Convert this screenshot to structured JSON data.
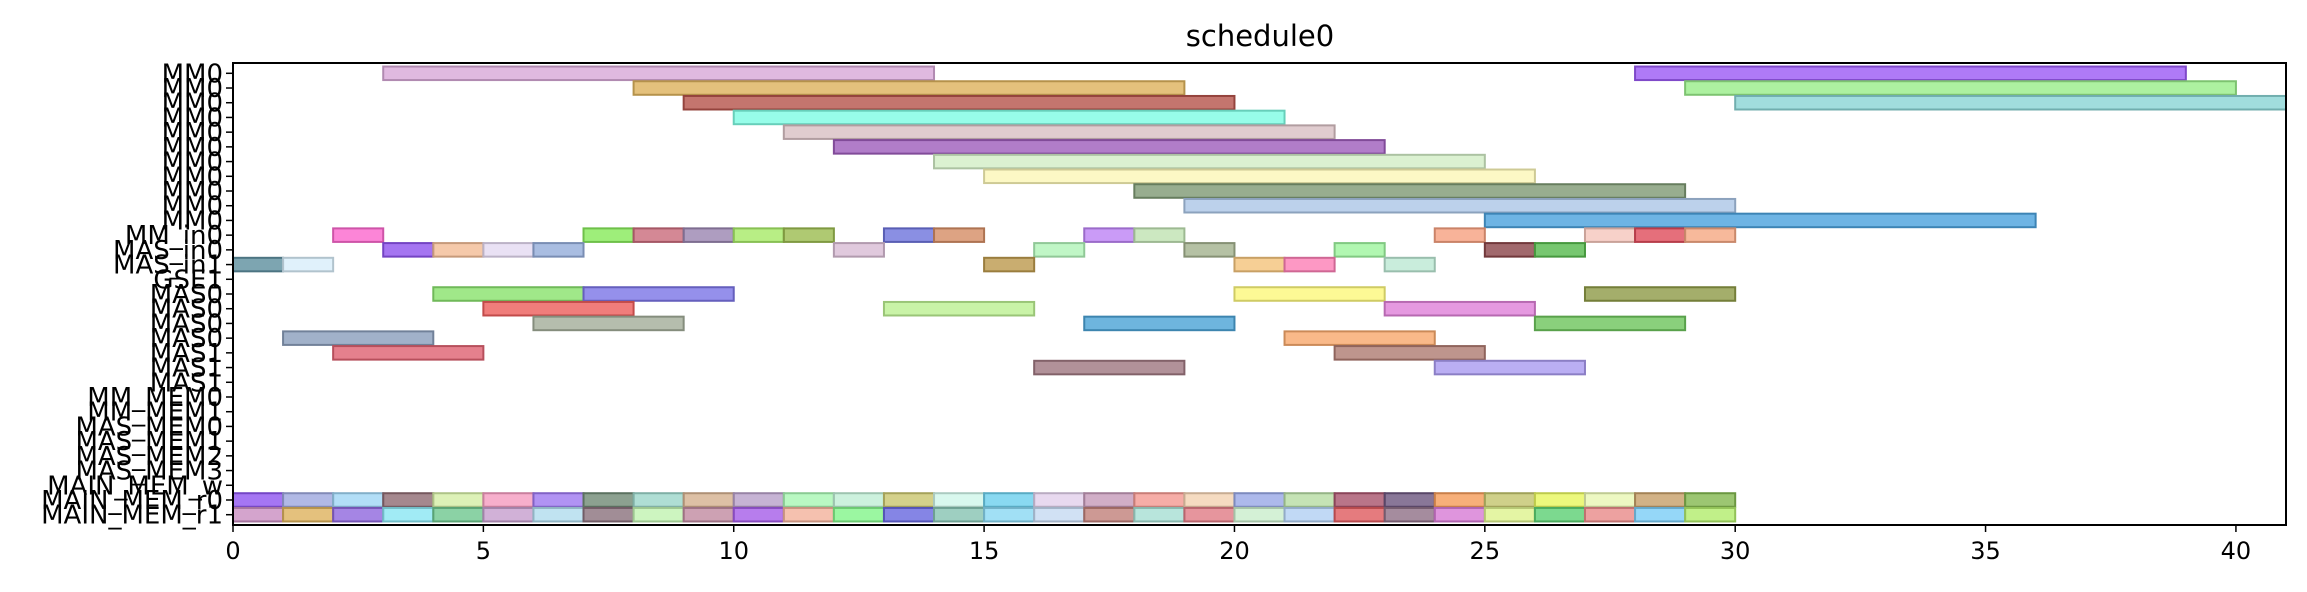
{
  "chart_data": {
    "type": "gantt",
    "title": "schedule0",
    "xlim": [
      0,
      41
    ],
    "xticks": [
      0,
      5,
      10,
      15,
      20,
      25,
      30,
      35,
      40
    ],
    "rows": [
      "MM0",
      "MM0",
      "MM0",
      "MM0",
      "MM0",
      "MM0",
      "MM0",
      "MM0",
      "MM0",
      "MM0",
      "MM0",
      "MM_in0",
      "MAS_in0",
      "MAS_in1",
      "GSE1",
      "MAS0",
      "MAS0",
      "MAS0",
      "MAS0",
      "MAS1",
      "MAS1",
      "MAS1",
      "MM_MEM0",
      "MM_MEM1",
      "MAS_MEM0",
      "MAS_MEM1",
      "MAS_MEM2",
      "MAS_MEM3",
      "MAIN_MEM_w",
      "MAIN_MEM_r0",
      "MAIN_MEM_r1"
    ],
    "bars": [
      {
        "row": 0,
        "start": 3,
        "end": 14,
        "color": "#d8a8d8"
      },
      {
        "row": 0,
        "start": 28,
        "end": 39,
        "color": "#9b59f5"
      },
      {
        "row": 1,
        "start": 8,
        "end": 19,
        "color": "#ddb25b"
      },
      {
        "row": 1,
        "start": 29,
        "end": 40,
        "color": "#98ee88"
      },
      {
        "row": 2,
        "start": 9,
        "end": 20,
        "color": "#b5524a"
      },
      {
        "row": 2,
        "start": 30,
        "end": 41,
        "color": "#8ad4d4"
      },
      {
        "row": 3,
        "start": 10,
        "end": 21,
        "color": "#7dfde3"
      },
      {
        "row": 4,
        "start": 11,
        "end": 22,
        "color": "#d8bfc3"
      },
      {
        "row": 5,
        "start": 12,
        "end": 23,
        "color": "#9d5cbb"
      },
      {
        "row": 6,
        "start": 14,
        "end": 25,
        "color": "#d2edc6"
      },
      {
        "row": 7,
        "start": 15,
        "end": 26,
        "color": "#fbf6b6"
      },
      {
        "row": 8,
        "start": 18,
        "end": 29,
        "color": "#7e9873"
      },
      {
        "row": 9,
        "start": 19,
        "end": 30,
        "color": "#abc6e6"
      },
      {
        "row": 10,
        "start": 25,
        "end": 36,
        "color": "#4aa1dd"
      },
      {
        "row": 11,
        "start": 2,
        "end": 3,
        "color": "#fb66cd"
      },
      {
        "row": 11,
        "start": 7,
        "end": 8,
        "color": "#86ea59"
      },
      {
        "row": 11,
        "start": 8,
        "end": 9,
        "color": "#c96a7b"
      },
      {
        "row": 11,
        "start": 9,
        "end": 10,
        "color": "#9a85b0"
      },
      {
        "row": 11,
        "start": 10,
        "end": 11,
        "color": "#a6ea67"
      },
      {
        "row": 11,
        "start": 11,
        "end": 12,
        "color": "#9bbb4f"
      },
      {
        "row": 11,
        "start": 13,
        "end": 14,
        "color": "#6d73dc"
      },
      {
        "row": 11,
        "start": 14,
        "end": 15,
        "color": "#d48c64"
      },
      {
        "row": 11,
        "start": 17,
        "end": 18,
        "color": "#bd82f5"
      },
      {
        "row": 11,
        "start": 18,
        "end": 19,
        "color": "#bfe2b2"
      },
      {
        "row": 11,
        "start": 24,
        "end": 25,
        "color": "#f6a07f"
      },
      {
        "row": 11,
        "start": 27,
        "end": 28,
        "color": "#f5c5bb"
      },
      {
        "row": 11,
        "start": 28,
        "end": 29,
        "color": "#df4b5a"
      },
      {
        "row": 11,
        "start": 29,
        "end": 30,
        "color": "#f5a782"
      },
      {
        "row": 12,
        "start": 3,
        "end": 4,
        "color": "#8e52ee"
      },
      {
        "row": 12,
        "start": 4,
        "end": 5,
        "color": "#f2bc95"
      },
      {
        "row": 12,
        "start": 5,
        "end": 6,
        "color": "#e4d9f1"
      },
      {
        "row": 12,
        "start": 6,
        "end": 7,
        "color": "#93acda"
      },
      {
        "row": 12,
        "start": 12,
        "end": 13,
        "color": "#d8bcd4"
      },
      {
        "row": 12,
        "start": 16,
        "end": 17,
        "color": "#b0f4b8"
      },
      {
        "row": 12,
        "start": 19,
        "end": 20,
        "color": "#a3b18d"
      },
      {
        "row": 12,
        "start": 22,
        "end": 23,
        "color": "#9df59e"
      },
      {
        "row": 12,
        "start": 25,
        "end": 26,
        "color": "#8a4448"
      },
      {
        "row": 12,
        "start": 26,
        "end": 27,
        "color": "#55b94c"
      },
      {
        "row": 13,
        "start": 0,
        "end": 1,
        "color": "#5d8e9e"
      },
      {
        "row": 13,
        "start": 1,
        "end": 2,
        "color": "#d8eefa"
      },
      {
        "row": 13,
        "start": 15,
        "end": 16,
        "color": "#bc994c"
      },
      {
        "row": 13,
        "start": 20,
        "end": 21,
        "color": "#f4c37b"
      },
      {
        "row": 13,
        "start": 21,
        "end": 22,
        "color": "#fc7eb5"
      },
      {
        "row": 13,
        "start": 23,
        "end": 24,
        "color": "#bbe8d3"
      },
      {
        "row": 15,
        "start": 4,
        "end": 7,
        "color": "#88e26c"
      },
      {
        "row": 15,
        "start": 7,
        "end": 10,
        "color": "#7b74e6"
      },
      {
        "row": 15,
        "start": 20,
        "end": 23,
        "color": "#fcf77a"
      },
      {
        "row": 15,
        "start": 27,
        "end": 30,
        "color": "#8d9a46"
      },
      {
        "row": 16,
        "start": 5,
        "end": 8,
        "color": "#ec5c5a"
      },
      {
        "row": 16,
        "start": 13,
        "end": 16,
        "color": "#bcf091"
      },
      {
        "row": 16,
        "start": 23,
        "end": 26,
        "color": "#df80d8"
      },
      {
        "row": 17,
        "start": 6,
        "end": 9,
        "color": "#a2ac98"
      },
      {
        "row": 17,
        "start": 17,
        "end": 20,
        "color": "#4aa2d6"
      },
      {
        "row": 17,
        "start": 26,
        "end": 29,
        "color": "#6dc45b"
      },
      {
        "row": 18,
        "start": 1,
        "end": 4,
        "color": "#8a9dbb"
      },
      {
        "row": 18,
        "start": 21,
        "end": 24,
        "color": "#f8a86b"
      },
      {
        "row": 19,
        "start": 2,
        "end": 5,
        "color": "#df6070"
      },
      {
        "row": 19,
        "start": 22,
        "end": 25,
        "color": "#ae7a70"
      },
      {
        "row": 20,
        "start": 16,
        "end": 19,
        "color": "#9e7680"
      },
      {
        "row": 20,
        "start": 24,
        "end": 27,
        "color": "#a99af0"
      },
      {
        "row": 29,
        "start": 0,
        "end": 1,
        "color": "#8e54f0"
      },
      {
        "row": 29,
        "start": 1,
        "end": 2,
        "color": "#9ea8df"
      },
      {
        "row": 29,
        "start": 2,
        "end": 3,
        "color": "#9fd6f5"
      },
      {
        "row": 29,
        "start": 3,
        "end": 4,
        "color": "#8f6a72"
      },
      {
        "row": 29,
        "start": 4,
        "end": 5,
        "color": "#d4eea5"
      },
      {
        "row": 29,
        "start": 5,
        "end": 6,
        "color": "#f59bbf"
      },
      {
        "row": 29,
        "start": 6,
        "end": 7,
        "color": "#9d78f0"
      },
      {
        "row": 29,
        "start": 7,
        "end": 8,
        "color": "#6f8a74"
      },
      {
        "row": 29,
        "start": 8,
        "end": 9,
        "color": "#9bd6c9"
      },
      {
        "row": 29,
        "start": 9,
        "end": 10,
        "color": "#d4b08f"
      },
      {
        "row": 29,
        "start": 10,
        "end": 11,
        "color": "#b8a0c9"
      },
      {
        "row": 29,
        "start": 11,
        "end": 12,
        "color": "#a8f6b3"
      },
      {
        "row": 29,
        "start": 12,
        "end": 13,
        "color": "#bfeed5"
      },
      {
        "row": 29,
        "start": 13,
        "end": 14,
        "color": "#c9c66e"
      },
      {
        "row": 29,
        "start": 14,
        "end": 15,
        "color": "#d0f6ea"
      },
      {
        "row": 29,
        "start": 15,
        "end": 16,
        "color": "#6cd0ee"
      },
      {
        "row": 29,
        "start": 16,
        "end": 17,
        "color": "#e2d0eb"
      },
      {
        "row": 29,
        "start": 17,
        "end": 18,
        "color": "#c59ab9"
      },
      {
        "row": 29,
        "start": 18,
        "end": 19,
        "color": "#f49891"
      },
      {
        "row": 29,
        "start": 19,
        "end": 20,
        "color": "#f3d2b2"
      },
      {
        "row": 29,
        "start": 20,
        "end": 21,
        "color": "#98a8e6"
      },
      {
        "row": 29,
        "start": 21,
        "end": 22,
        "color": "#b6dca3"
      },
      {
        "row": 29,
        "start": 22,
        "end": 23,
        "color": "#a8536c"
      },
      {
        "row": 29,
        "start": 23,
        "end": 24,
        "color": "#6b557e"
      },
      {
        "row": 29,
        "start": 24,
        "end": 25,
        "color": "#f59b58"
      },
      {
        "row": 29,
        "start": 25,
        "end": 26,
        "color": "#c3c46d"
      },
      {
        "row": 29,
        "start": 26,
        "end": 27,
        "color": "#e7f65d"
      },
      {
        "row": 29,
        "start": 27,
        "end": 28,
        "color": "#e9f6b3"
      },
      {
        "row": 29,
        "start": 28,
        "end": 29,
        "color": "#c79f68"
      },
      {
        "row": 29,
        "start": 29,
        "end": 30,
        "color": "#83b84f"
      },
      {
        "row": 30,
        "start": 0,
        "end": 1,
        "color": "#c98dc1"
      },
      {
        "row": 30,
        "start": 1,
        "end": 2,
        "color": "#ddb25c"
      },
      {
        "row": 30,
        "start": 2,
        "end": 3,
        "color": "#8f66dd"
      },
      {
        "row": 30,
        "start": 3,
        "end": 4,
        "color": "#8ae6f3"
      },
      {
        "row": 30,
        "start": 4,
        "end": 5,
        "color": "#6ec78e"
      },
      {
        "row": 30,
        "start": 5,
        "end": 6,
        "color": "#c59ecd"
      },
      {
        "row": 30,
        "start": 6,
        "end": 7,
        "color": "#b0dcee"
      },
      {
        "row": 30,
        "start": 7,
        "end": 8,
        "color": "#8a707c"
      },
      {
        "row": 30,
        "start": 8,
        "end": 9,
        "color": "#c0f2b0"
      },
      {
        "row": 30,
        "start": 9,
        "end": 10,
        "color": "#c08aa0"
      },
      {
        "row": 30,
        "start": 10,
        "end": 11,
        "color": "#a55ce9"
      },
      {
        "row": 30,
        "start": 11,
        "end": 12,
        "color": "#f2b29b"
      },
      {
        "row": 30,
        "start": 12,
        "end": 13,
        "color": "#82f58a"
      },
      {
        "row": 30,
        "start": 13,
        "end": 14,
        "color": "#6666df"
      },
      {
        "row": 30,
        "start": 14,
        "end": 15,
        "color": "#86c3b2"
      },
      {
        "row": 30,
        "start": 15,
        "end": 16,
        "color": "#8ad8f3"
      },
      {
        "row": 30,
        "start": 16,
        "end": 17,
        "color": "#c6d9f1"
      },
      {
        "row": 30,
        "start": 17,
        "end": 18,
        "color": "#c07f79"
      },
      {
        "row": 30,
        "start": 18,
        "end": 19,
        "color": "#a6dfd3"
      },
      {
        "row": 30,
        "start": 19,
        "end": 20,
        "color": "#e07b85"
      },
      {
        "row": 30,
        "start": 20,
        "end": 21,
        "color": "#c9edcc"
      },
      {
        "row": 30,
        "start": 21,
        "end": 22,
        "color": "#b2d0f3"
      },
      {
        "row": 30,
        "start": 22,
        "end": 23,
        "color": "#df5a5e"
      },
      {
        "row": 30,
        "start": 23,
        "end": 24,
        "color": "#8e6f86"
      },
      {
        "row": 30,
        "start": 24,
        "end": 25,
        "color": "#d77ad5"
      },
      {
        "row": 30,
        "start": 25,
        "end": 26,
        "color": "#ddf28d"
      },
      {
        "row": 30,
        "start": 26,
        "end": 27,
        "color": "#5bd073"
      },
      {
        "row": 30,
        "start": 27,
        "end": 28,
        "color": "#e98a88"
      },
      {
        "row": 30,
        "start": 28,
        "end": 29,
        "color": "#7bcdf6"
      },
      {
        "row": 30,
        "start": 29,
        "end": 30,
        "color": "#b2ec6b"
      }
    ]
  }
}
